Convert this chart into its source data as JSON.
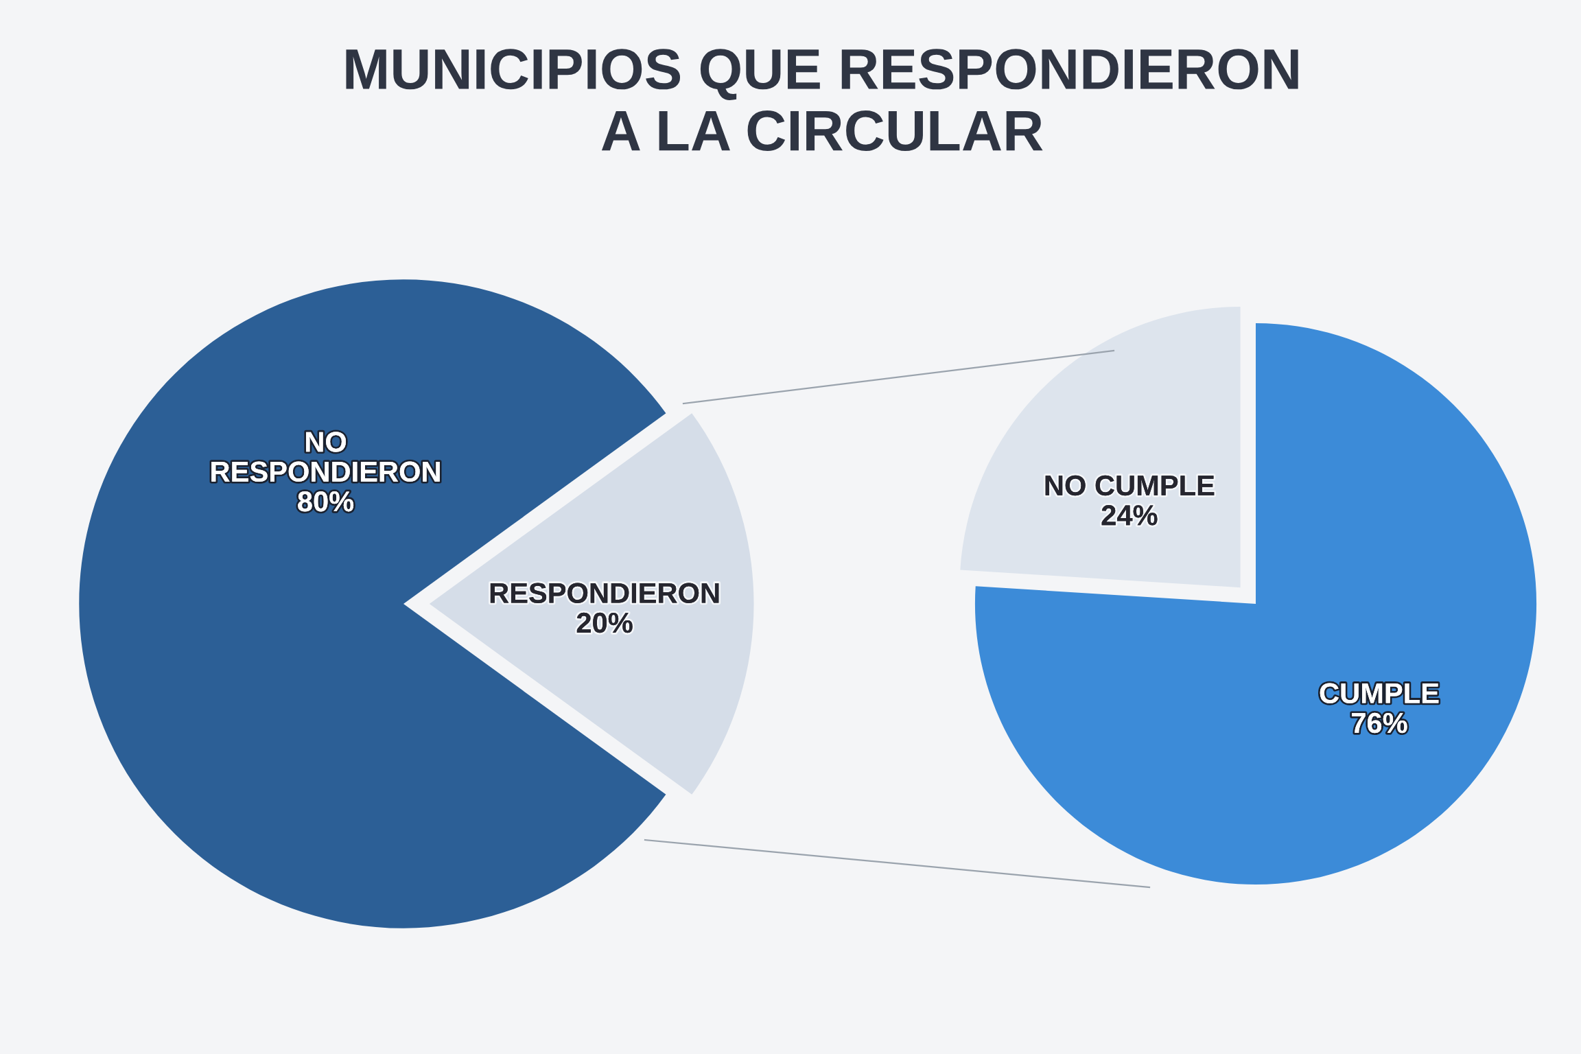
{
  "chart_data": [
    {
      "type": "pie",
      "title": "MUNICIPIOS QUE RESPONDIERON\nA LA CIRCULAR",
      "categories": [
        "NO\nRESPONDIERON",
        "RESPONDIERON"
      ],
      "values": [
        80,
        20
      ],
      "colors": [
        "#2c5f96",
        "#d5dde8"
      ],
      "value_labels": [
        "80%",
        "20%"
      ]
    },
    {
      "type": "pie",
      "categories": [
        "NO CUMPLE",
        "CUMPLE"
      ],
      "values": [
        24,
        76
      ],
      "colors": [
        "#dde4ed",
        "#3c8bd8"
      ],
      "value_labels": [
        "24%",
        "76%"
      ]
    }
  ]
}
